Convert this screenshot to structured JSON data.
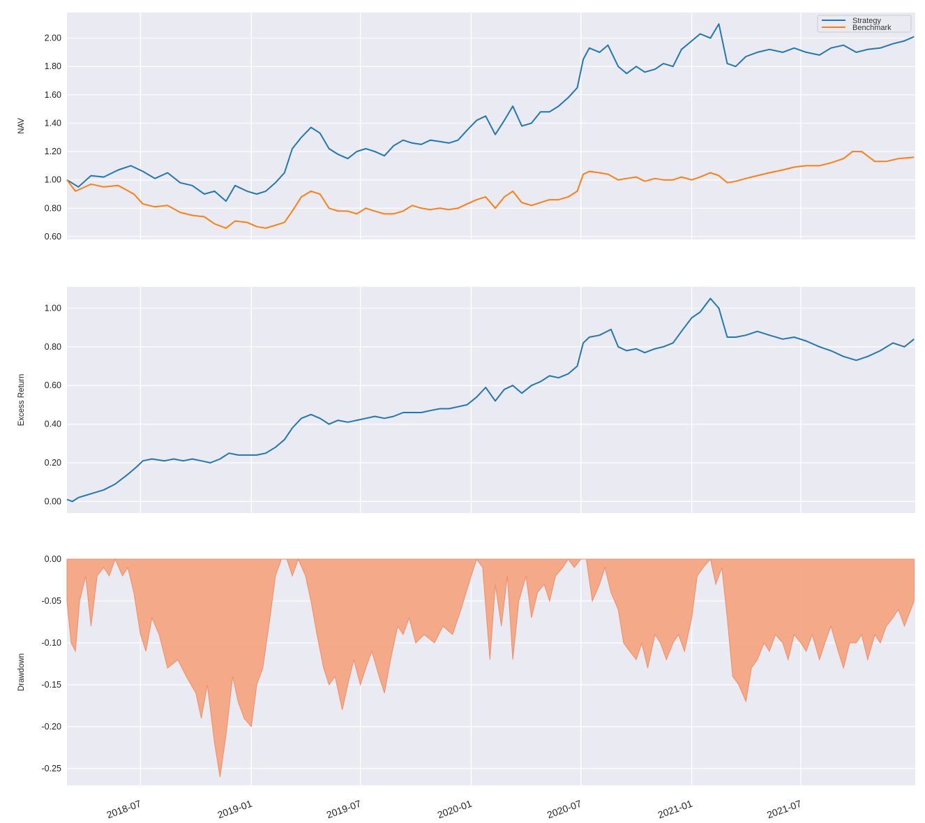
{
  "chart_data": [
    {
      "type": "line",
      "ylabel": "NAV",
      "ylim": [
        0.58,
        2.18
      ],
      "yticks": [
        "0.60",
        "0.80",
        "1.00",
        "1.20",
        "1.40",
        "1.60",
        "1.80",
        "2.00"
      ],
      "grid": true,
      "legend": "top-right",
      "series": [
        {
          "name": "Strategy",
          "color": "#1f77b4",
          "x": [
            "2018-03-01",
            "2018-03-20",
            "2018-04-10",
            "2018-05-01",
            "2018-05-25",
            "2018-06-15",
            "2018-07-05",
            "2018-07-25",
            "2018-08-15",
            "2018-09-05",
            "2018-09-25",
            "2018-10-15",
            "2018-11-01",
            "2018-11-20",
            "2018-12-05",
            "2018-12-25",
            "2019-01-10",
            "2019-01-25",
            "2019-02-10",
            "2019-02-25",
            "2019-03-10",
            "2019-03-25",
            "2019-04-10",
            "2019-04-25",
            "2019-05-10",
            "2019-05-25",
            "2019-06-10",
            "2019-06-25",
            "2019-07-10",
            "2019-07-25",
            "2019-08-10",
            "2019-08-25",
            "2019-09-10",
            "2019-09-25",
            "2019-10-10",
            "2019-10-25",
            "2019-11-10",
            "2019-11-25",
            "2019-12-10",
            "2019-12-25",
            "2020-01-10",
            "2020-01-25",
            "2020-02-10",
            "2020-02-25",
            "2020-03-10",
            "2020-03-25",
            "2020-04-10",
            "2020-04-25",
            "2020-05-10",
            "2020-05-25",
            "2020-06-10",
            "2020-06-25",
            "2020-07-05",
            "2020-07-15",
            "2020-08-01",
            "2020-08-15",
            "2020-09-01",
            "2020-09-15",
            "2020-10-01",
            "2020-10-15",
            "2020-11-01",
            "2020-11-15",
            "2020-12-01",
            "2020-12-15",
            "2021-01-01",
            "2021-01-15",
            "2021-02-01",
            "2021-02-15",
            "2021-03-01",
            "2021-03-15",
            "2021-04-01",
            "2021-04-20",
            "2021-05-10",
            "2021-06-01",
            "2021-06-20",
            "2021-07-10",
            "2021-08-01",
            "2021-08-20",
            "2021-09-10",
            "2021-10-01",
            "2021-10-20",
            "2021-11-10",
            "2021-12-01",
            "2021-12-20",
            "2022-01-05"
          ],
          "values": [
            1.0,
            0.95,
            1.03,
            1.02,
            1.07,
            1.1,
            1.06,
            1.01,
            1.05,
            0.98,
            0.96,
            0.9,
            0.92,
            0.85,
            0.96,
            0.92,
            0.9,
            0.92,
            0.98,
            1.05,
            1.22,
            1.3,
            1.37,
            1.33,
            1.22,
            1.18,
            1.15,
            1.2,
            1.22,
            1.2,
            1.17,
            1.24,
            1.28,
            1.26,
            1.25,
            1.28,
            1.27,
            1.26,
            1.28,
            1.35,
            1.42,
            1.45,
            1.32,
            1.42,
            1.52,
            1.38,
            1.4,
            1.48,
            1.48,
            1.52,
            1.58,
            1.65,
            1.85,
            1.93,
            1.9,
            1.95,
            1.8,
            1.75,
            1.8,
            1.76,
            1.78,
            1.82,
            1.8,
            1.92,
            1.98,
            2.03,
            2.0,
            2.1,
            1.82,
            1.8,
            1.87,
            1.9,
            1.92,
            1.9,
            1.93,
            1.9,
            1.88,
            1.93,
            1.95,
            1.9,
            1.92,
            1.93,
            1.96,
            1.98,
            2.01
          ]
        },
        {
          "name": "Benchmark",
          "color": "#ff7f0e",
          "x": [
            "2018-03-01",
            "2018-03-15",
            "2018-04-10",
            "2018-05-01",
            "2018-05-25",
            "2018-06-20",
            "2018-07-05",
            "2018-07-25",
            "2018-08-15",
            "2018-09-05",
            "2018-09-25",
            "2018-10-15",
            "2018-11-01",
            "2018-11-20",
            "2018-12-05",
            "2018-12-25",
            "2019-01-10",
            "2019-01-25",
            "2019-02-10",
            "2019-02-25",
            "2019-03-10",
            "2019-03-25",
            "2019-04-10",
            "2019-04-25",
            "2019-05-10",
            "2019-05-25",
            "2019-06-10",
            "2019-06-25",
            "2019-07-10",
            "2019-07-25",
            "2019-08-10",
            "2019-08-25",
            "2019-09-10",
            "2019-09-25",
            "2019-10-10",
            "2019-10-25",
            "2019-11-10",
            "2019-11-25",
            "2019-12-10",
            "2019-12-25",
            "2020-01-10",
            "2020-01-25",
            "2020-02-10",
            "2020-02-25",
            "2020-03-10",
            "2020-03-25",
            "2020-04-10",
            "2020-04-25",
            "2020-05-10",
            "2020-05-25",
            "2020-06-10",
            "2020-06-25",
            "2020-07-05",
            "2020-07-15",
            "2020-08-01",
            "2020-08-15",
            "2020-09-01",
            "2020-09-15",
            "2020-10-01",
            "2020-10-15",
            "2020-11-01",
            "2020-11-15",
            "2020-12-01",
            "2020-12-15",
            "2021-01-01",
            "2021-01-15",
            "2021-02-01",
            "2021-02-15",
            "2021-03-01",
            "2021-03-15",
            "2021-04-01",
            "2021-04-20",
            "2021-05-10",
            "2021-06-01",
            "2021-06-20",
            "2021-07-10",
            "2021-08-01",
            "2021-08-20",
            "2021-09-10",
            "2021-09-25",
            "2021-10-10",
            "2021-11-01",
            "2021-11-20",
            "2021-12-10",
            "2022-01-05"
          ],
          "values": [
            1.0,
            0.92,
            0.97,
            0.95,
            0.96,
            0.9,
            0.83,
            0.81,
            0.82,
            0.77,
            0.75,
            0.74,
            0.69,
            0.66,
            0.71,
            0.7,
            0.67,
            0.66,
            0.68,
            0.7,
            0.78,
            0.88,
            0.92,
            0.9,
            0.8,
            0.78,
            0.78,
            0.76,
            0.8,
            0.78,
            0.76,
            0.76,
            0.78,
            0.82,
            0.8,
            0.79,
            0.8,
            0.79,
            0.8,
            0.83,
            0.86,
            0.88,
            0.8,
            0.88,
            0.92,
            0.84,
            0.82,
            0.84,
            0.86,
            0.86,
            0.88,
            0.92,
            1.04,
            1.06,
            1.05,
            1.04,
            1.0,
            1.01,
            1.02,
            0.99,
            1.01,
            1.0,
            1.0,
            1.02,
            1.0,
            1.02,
            1.05,
            1.03,
            0.98,
            0.99,
            1.01,
            1.03,
            1.05,
            1.07,
            1.09,
            1.1,
            1.1,
            1.12,
            1.15,
            1.2,
            1.2,
            1.13,
            1.13,
            1.15,
            1.16
          ]
        }
      ]
    },
    {
      "type": "line",
      "ylabel": "Excess Return",
      "ylim": [
        -0.06,
        1.11
      ],
      "yticks": [
        "0.00",
        "0.20",
        "0.40",
        "0.60",
        "0.80",
        "1.00"
      ],
      "grid": true,
      "series": [
        {
          "color": "#1f77b4",
          "x": [
            "2018-03-01",
            "2018-03-10",
            "2018-03-20",
            "2018-04-10",
            "2018-05-01",
            "2018-05-20",
            "2018-06-10",
            "2018-06-25",
            "2018-07-05",
            "2018-07-20",
            "2018-08-10",
            "2018-08-25",
            "2018-09-10",
            "2018-09-25",
            "2018-10-10",
            "2018-10-25",
            "2018-11-10",
            "2018-11-25",
            "2018-12-10",
            "2018-12-25",
            "2019-01-10",
            "2019-01-25",
            "2019-02-10",
            "2019-02-25",
            "2019-03-10",
            "2019-03-25",
            "2019-04-10",
            "2019-04-25",
            "2019-05-10",
            "2019-05-25",
            "2019-06-10",
            "2019-06-25",
            "2019-07-10",
            "2019-07-25",
            "2019-08-10",
            "2019-08-25",
            "2019-09-10",
            "2019-09-25",
            "2019-10-10",
            "2019-10-25",
            "2019-11-10",
            "2019-11-25",
            "2019-12-10",
            "2019-12-25",
            "2020-01-10",
            "2020-01-25",
            "2020-02-10",
            "2020-02-25",
            "2020-03-10",
            "2020-03-25",
            "2020-04-10",
            "2020-04-25",
            "2020-05-10",
            "2020-05-25",
            "2020-06-10",
            "2020-06-25",
            "2020-07-05",
            "2020-07-15",
            "2020-08-01",
            "2020-08-20",
            "2020-09-01",
            "2020-09-15",
            "2020-10-01",
            "2020-10-15",
            "2020-11-01",
            "2020-11-15",
            "2020-12-01",
            "2020-12-15",
            "2021-01-01",
            "2021-01-15",
            "2021-02-01",
            "2021-02-15",
            "2021-03-01",
            "2021-03-15",
            "2021-04-01",
            "2021-04-20",
            "2021-05-10",
            "2021-06-01",
            "2021-06-20",
            "2021-07-10",
            "2021-08-01",
            "2021-08-20",
            "2021-09-10",
            "2021-10-01",
            "2021-10-20",
            "2021-11-10",
            "2021-12-01",
            "2021-12-20",
            "2022-01-05"
          ],
          "values": [
            0.01,
            0.0,
            0.02,
            0.04,
            0.06,
            0.09,
            0.14,
            0.18,
            0.21,
            0.22,
            0.21,
            0.22,
            0.21,
            0.22,
            0.21,
            0.2,
            0.22,
            0.25,
            0.24,
            0.24,
            0.24,
            0.25,
            0.28,
            0.32,
            0.38,
            0.43,
            0.45,
            0.43,
            0.4,
            0.42,
            0.41,
            0.42,
            0.43,
            0.44,
            0.43,
            0.44,
            0.46,
            0.46,
            0.46,
            0.47,
            0.48,
            0.48,
            0.49,
            0.5,
            0.54,
            0.59,
            0.52,
            0.58,
            0.6,
            0.56,
            0.6,
            0.62,
            0.65,
            0.64,
            0.66,
            0.7,
            0.82,
            0.85,
            0.86,
            0.89,
            0.8,
            0.78,
            0.79,
            0.77,
            0.79,
            0.8,
            0.82,
            0.88,
            0.95,
            0.98,
            1.05,
            1.0,
            0.85,
            0.85,
            0.86,
            0.88,
            0.86,
            0.84,
            0.85,
            0.83,
            0.8,
            0.78,
            0.75,
            0.73,
            0.75,
            0.78,
            0.82,
            0.8,
            0.84
          ]
        }
      ]
    },
    {
      "type": "area",
      "ylabel": "Drawdown",
      "xlabel": "",
      "ylim": [
        -0.27,
        0.0
      ],
      "yticks": [
        "0.00",
        "-0.05",
        "-0.10",
        "-0.15",
        "-0.20",
        "-0.25"
      ],
      "grid": true,
      "xticks": [
        "2018-07",
        "2019-01",
        "2019-07",
        "2020-01",
        "2020-07",
        "2021-01",
        "2021-07"
      ],
      "series": [
        {
          "color": "#f4a582",
          "x": [
            "2018-03-01",
            "2018-03-08",
            "2018-03-15",
            "2018-03-22",
            "2018-04-01",
            "2018-04-10",
            "2018-04-20",
            "2018-05-01",
            "2018-05-10",
            "2018-05-20",
            "2018-06-01",
            "2018-06-10",
            "2018-06-20",
            "2018-07-01",
            "2018-07-10",
            "2018-07-20",
            "2018-08-01",
            "2018-08-15",
            "2018-09-01",
            "2018-09-15",
            "2018-10-01",
            "2018-10-10",
            "2018-10-20",
            "2018-11-01",
            "2018-11-10",
            "2018-11-20",
            "2018-12-01",
            "2018-12-10",
            "2018-12-20",
            "2019-01-01",
            "2019-01-10",
            "2019-01-20",
            "2019-02-01",
            "2019-02-10",
            "2019-02-20",
            "2019-03-01",
            "2019-03-10",
            "2019-03-20",
            "2019-04-01",
            "2019-04-10",
            "2019-04-20",
            "2019-05-01",
            "2019-05-10",
            "2019-05-20",
            "2019-06-01",
            "2019-06-10",
            "2019-06-20",
            "2019-07-01",
            "2019-07-10",
            "2019-07-20",
            "2019-08-01",
            "2019-08-10",
            "2019-08-20",
            "2019-09-01",
            "2019-09-10",
            "2019-09-20",
            "2019-10-01",
            "2019-10-15",
            "2019-11-01",
            "2019-11-15",
            "2019-12-01",
            "2019-12-15",
            "2020-01-01",
            "2020-01-10",
            "2020-01-20",
            "2020-02-01",
            "2020-02-10",
            "2020-02-20",
            "2020-03-01",
            "2020-03-10",
            "2020-03-20",
            "2020-04-01",
            "2020-04-10",
            "2020-04-20",
            "2020-05-01",
            "2020-05-10",
            "2020-05-20",
            "2020-06-01",
            "2020-06-10",
            "2020-06-20",
            "2020-07-01",
            "2020-07-10",
            "2020-07-20",
            "2020-08-01",
            "2020-08-10",
            "2020-08-20",
            "2020-09-01",
            "2020-09-10",
            "2020-09-20",
            "2020-10-01",
            "2020-10-10",
            "2020-10-20",
            "2020-11-01",
            "2020-11-10",
            "2020-11-20",
            "2020-12-01",
            "2020-12-10",
            "2020-12-20",
            "2021-01-01",
            "2021-01-10",
            "2021-01-20",
            "2021-02-01",
            "2021-02-10",
            "2021-02-20",
            "2021-03-01",
            "2021-03-10",
            "2021-03-20",
            "2021-04-01",
            "2021-04-10",
            "2021-04-20",
            "2021-05-01",
            "2021-05-10",
            "2021-05-20",
            "2021-06-01",
            "2021-06-10",
            "2021-06-20",
            "2021-07-01",
            "2021-07-10",
            "2021-07-20",
            "2021-08-01",
            "2021-08-10",
            "2021-08-20",
            "2021-09-01",
            "2021-09-10",
            "2021-09-20",
            "2021-10-01",
            "2021-10-10",
            "2021-10-20",
            "2021-11-01",
            "2021-11-10",
            "2021-11-20",
            "2021-12-01",
            "2021-12-10",
            "2021-12-20",
            "2022-01-05"
          ],
          "values": [
            -0.05,
            -0.1,
            -0.11,
            -0.05,
            -0.02,
            -0.08,
            -0.02,
            -0.01,
            -0.02,
            0.0,
            -0.02,
            -0.01,
            -0.04,
            -0.09,
            -0.11,
            -0.07,
            -0.09,
            -0.13,
            -0.12,
            -0.14,
            -0.16,
            -0.19,
            -0.15,
            -0.22,
            -0.26,
            -0.21,
            -0.14,
            -0.17,
            -0.19,
            -0.2,
            -0.15,
            -0.13,
            -0.07,
            -0.02,
            0.0,
            0.0,
            -0.02,
            0.0,
            -0.02,
            -0.05,
            -0.09,
            -0.13,
            -0.15,
            -0.14,
            -0.18,
            -0.15,
            -0.12,
            -0.15,
            -0.13,
            -0.11,
            -0.14,
            -0.16,
            -0.12,
            -0.08,
            -0.09,
            -0.07,
            -0.1,
            -0.09,
            -0.1,
            -0.08,
            -0.09,
            -0.06,
            -0.02,
            0.0,
            -0.01,
            -0.12,
            -0.03,
            -0.08,
            -0.02,
            -0.12,
            -0.05,
            -0.02,
            -0.07,
            -0.04,
            -0.03,
            -0.05,
            -0.02,
            -0.01,
            0.0,
            -0.01,
            0.0,
            0.0,
            -0.05,
            -0.03,
            -0.01,
            -0.04,
            -0.06,
            -0.1,
            -0.11,
            -0.12,
            -0.1,
            -0.13,
            -0.09,
            -0.1,
            -0.12,
            -0.1,
            -0.09,
            -0.11,
            -0.07,
            -0.02,
            -0.01,
            0.0,
            -0.03,
            -0.01,
            -0.07,
            -0.14,
            -0.15,
            -0.17,
            -0.13,
            -0.12,
            -0.1,
            -0.11,
            -0.09,
            -0.1,
            -0.12,
            -0.09,
            -0.1,
            -0.11,
            -0.09,
            -0.12,
            -0.1,
            -0.08,
            -0.11,
            -0.13,
            -0.1,
            -0.1,
            -0.09,
            -0.12,
            -0.09,
            -0.1,
            -0.08,
            -0.07,
            -0.06,
            -0.08,
            -0.05
          ]
        }
      ]
    }
  ]
}
